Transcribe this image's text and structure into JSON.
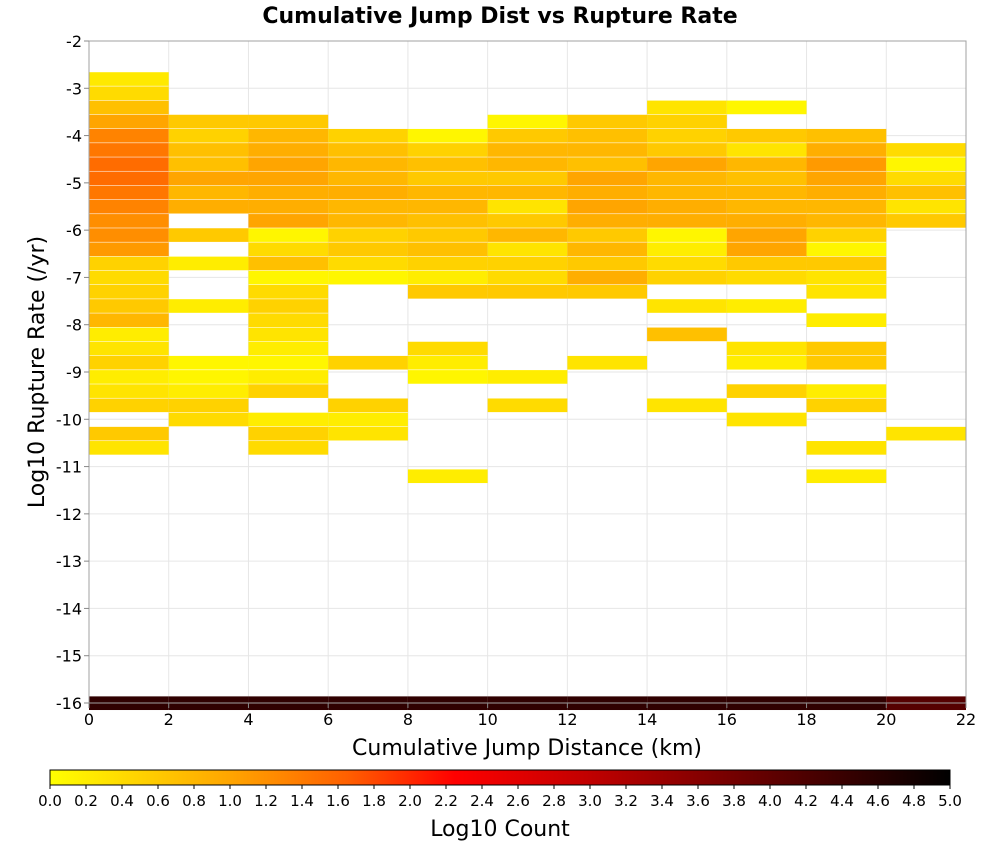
{
  "chart_data": {
    "type": "heatmap",
    "title": "Cumulative Jump Dist vs Rupture Rate",
    "xlabel": "Cumulative Jump Distance (km)",
    "ylabel": "Log10 Rupture Rate (/yr)",
    "xlim": [
      0,
      22
    ],
    "ylim": [
      -16,
      -2
    ],
    "xticks": [
      0,
      2,
      4,
      6,
      8,
      10,
      12,
      14,
      16,
      18,
      20,
      22
    ],
    "yticks": [
      -2,
      -3,
      -4,
      -5,
      -6,
      -7,
      -8,
      -9,
      -10,
      -11,
      -12,
      -13,
      -14,
      -15,
      -16
    ],
    "grid": true,
    "bin_width_x": 2,
    "bin_height_y": 0.28,
    "colorbar": {
      "label": "Log10 Count",
      "range": [
        0,
        5
      ],
      "ticks": [
        "0.0",
        "0.2",
        "0.4",
        "0.6",
        "0.8",
        "1.0",
        "1.2",
        "1.4",
        "1.6",
        "1.8",
        "2.0",
        "2.2",
        "2.4",
        "2.6",
        "2.8",
        "3.0",
        "3.2",
        "3.4",
        "3.6",
        "3.8",
        "4.0",
        "4.2",
        "4.4",
        "4.6",
        "4.8",
        "5.0"
      ],
      "colors": [
        "#ffff00",
        "#ffa500",
        "#ff6000",
        "#ff0000",
        "#c00000",
        "#800000",
        "#000000"
      ],
      "position": "bottom"
    },
    "cells": [
      {
        "x": 1,
        "y": -2.8,
        "v": 0.25
      },
      {
        "x": 1,
        "y": -3.1,
        "v": 0.4
      },
      {
        "x": 1,
        "y": -3.4,
        "v": 0.7
      },
      {
        "x": 1,
        "y": -3.7,
        "v": 1.0
      },
      {
        "x": 1,
        "y": -4.0,
        "v": 1.3
      },
      {
        "x": 1,
        "y": -4.3,
        "v": 1.4
      },
      {
        "x": 1,
        "y": -4.6,
        "v": 1.5
      },
      {
        "x": 1,
        "y": -4.9,
        "v": 1.5
      },
      {
        "x": 1,
        "y": -5.2,
        "v": 1.4
      },
      {
        "x": 1,
        "y": -5.5,
        "v": 1.3
      },
      {
        "x": 1,
        "y": -5.8,
        "v": 1.2
      },
      {
        "x": 1,
        "y": -6.1,
        "v": 1.2
      },
      {
        "x": 1,
        "y": -6.4,
        "v": 1.1
      },
      {
        "x": 1,
        "y": -6.7,
        "v": 0.5
      },
      {
        "x": 1,
        "y": -7.0,
        "v": 0.4
      },
      {
        "x": 1,
        "y": -7.3,
        "v": 0.5
      },
      {
        "x": 1,
        "y": -7.6,
        "v": 0.6
      },
      {
        "x": 1,
        "y": -7.9,
        "v": 0.8
      },
      {
        "x": 1,
        "y": -8.2,
        "v": 0.2
      },
      {
        "x": 1,
        "y": -8.5,
        "v": 0.3
      },
      {
        "x": 1,
        "y": -8.8,
        "v": 0.5
      },
      {
        "x": 1,
        "y": -9.1,
        "v": 0.2
      },
      {
        "x": 1,
        "y": -9.4,
        "v": 0.3
      },
      {
        "x": 1,
        "y": -9.7,
        "v": 0.5
      },
      {
        "x": 1,
        "y": -10.3,
        "v": 0.6
      },
      {
        "x": 1,
        "y": -10.6,
        "v": 0.3
      },
      {
        "x": 3,
        "y": -3.7,
        "v": 0.6
      },
      {
        "x": 3,
        "y": -4.0,
        "v": 0.5
      },
      {
        "x": 3,
        "y": -4.3,
        "v": 0.7
      },
      {
        "x": 3,
        "y": -4.6,
        "v": 0.7
      },
      {
        "x": 3,
        "y": -4.9,
        "v": 1.0
      },
      {
        "x": 3,
        "y": -5.2,
        "v": 0.8
      },
      {
        "x": 3,
        "y": -5.5,
        "v": 0.9
      },
      {
        "x": 3,
        "y": -6.1,
        "v": 0.6
      },
      {
        "x": 3,
        "y": -6.7,
        "v": 0.2
      },
      {
        "x": 3,
        "y": -7.6,
        "v": 0.2
      },
      {
        "x": 3,
        "y": -8.8,
        "v": 0.1
      },
      {
        "x": 3,
        "y": -9.1,
        "v": 0.1
      },
      {
        "x": 3,
        "y": -9.4,
        "v": 0.2
      },
      {
        "x": 3,
        "y": -9.7,
        "v": 0.5
      },
      {
        "x": 3,
        "y": -10.0,
        "v": 0.4
      },
      {
        "x": 5,
        "y": -3.7,
        "v": 0.6
      },
      {
        "x": 5,
        "y": -4.0,
        "v": 0.8
      },
      {
        "x": 5,
        "y": -4.3,
        "v": 0.9
      },
      {
        "x": 5,
        "y": -4.6,
        "v": 1.0
      },
      {
        "x": 5,
        "y": -4.9,
        "v": 1.0
      },
      {
        "x": 5,
        "y": -5.2,
        "v": 0.9
      },
      {
        "x": 5,
        "y": -5.5,
        "v": 0.9
      },
      {
        "x": 5,
        "y": -5.8,
        "v": 1.0
      },
      {
        "x": 5,
        "y": -6.1,
        "v": 0.1
      },
      {
        "x": 5,
        "y": -6.4,
        "v": 0.4
      },
      {
        "x": 5,
        "y": -6.7,
        "v": 0.7
      },
      {
        "x": 5,
        "y": -7.0,
        "v": 0.1
      },
      {
        "x": 5,
        "y": -7.3,
        "v": 0.4
      },
      {
        "x": 5,
        "y": -7.6,
        "v": 0.5
      },
      {
        "x": 5,
        "y": -7.9,
        "v": 0.4
      },
      {
        "x": 5,
        "y": -8.2,
        "v": 0.3
      },
      {
        "x": 5,
        "y": -8.5,
        "v": 0.2
      },
      {
        "x": 5,
        "y": -8.8,
        "v": 0.1
      },
      {
        "x": 5,
        "y": -9.1,
        "v": 0.2
      },
      {
        "x": 5,
        "y": -9.4,
        "v": 0.5
      },
      {
        "x": 5,
        "y": -10.0,
        "v": 0.2
      },
      {
        "x": 5,
        "y": -10.3,
        "v": 0.5
      },
      {
        "x": 5,
        "y": -10.6,
        "v": 0.4
      },
      {
        "x": 7,
        "y": -4.0,
        "v": 0.5
      },
      {
        "x": 7,
        "y": -4.3,
        "v": 0.7
      },
      {
        "x": 7,
        "y": -4.6,
        "v": 0.8
      },
      {
        "x": 7,
        "y": -4.9,
        "v": 0.8
      },
      {
        "x": 7,
        "y": -5.2,
        "v": 0.9
      },
      {
        "x": 7,
        "y": -5.5,
        "v": 0.8
      },
      {
        "x": 7,
        "y": -5.8,
        "v": 0.8
      },
      {
        "x": 7,
        "y": -6.1,
        "v": 0.5
      },
      {
        "x": 7,
        "y": -6.4,
        "v": 0.6
      },
      {
        "x": 7,
        "y": -6.7,
        "v": 0.4
      },
      {
        "x": 7,
        "y": -7.0,
        "v": 0.1
      },
      {
        "x": 7,
        "y": -8.8,
        "v": 0.5
      },
      {
        "x": 7,
        "y": -9.7,
        "v": 0.5
      },
      {
        "x": 7,
        "y": -10.0,
        "v": 0.2
      },
      {
        "x": 7,
        "y": -10.3,
        "v": 0.3
      },
      {
        "x": 9,
        "y": -4.0,
        "v": 0.1
      },
      {
        "x": 9,
        "y": -4.3,
        "v": 0.5
      },
      {
        "x": 9,
        "y": -4.6,
        "v": 0.7
      },
      {
        "x": 9,
        "y": -4.9,
        "v": 0.6
      },
      {
        "x": 9,
        "y": -5.2,
        "v": 0.8
      },
      {
        "x": 9,
        "y": -5.5,
        "v": 0.8
      },
      {
        "x": 9,
        "y": -5.8,
        "v": 0.7
      },
      {
        "x": 9,
        "y": -6.1,
        "v": 0.6
      },
      {
        "x": 9,
        "y": -6.4,
        "v": 0.7
      },
      {
        "x": 9,
        "y": -6.7,
        "v": 0.5
      },
      {
        "x": 9,
        "y": -7.0,
        "v": 0.2
      },
      {
        "x": 9,
        "y": -7.3,
        "v": 0.6
      },
      {
        "x": 9,
        "y": -8.5,
        "v": 0.4
      },
      {
        "x": 9,
        "y": -8.8,
        "v": 0.2
      },
      {
        "x": 9,
        "y": -9.1,
        "v": 0.1
      },
      {
        "x": 9,
        "y": -11.2,
        "v": 0.2
      },
      {
        "x": 11,
        "y": -3.7,
        "v": 0.1
      },
      {
        "x": 11,
        "y": -4.0,
        "v": 0.6
      },
      {
        "x": 11,
        "y": -4.3,
        "v": 0.8
      },
      {
        "x": 11,
        "y": -4.6,
        "v": 0.8
      },
      {
        "x": 11,
        "y": -4.9,
        "v": 0.6
      },
      {
        "x": 11,
        "y": -5.2,
        "v": 0.8
      },
      {
        "x": 11,
        "y": -5.5,
        "v": 0.3
      },
      {
        "x": 11,
        "y": -5.8,
        "v": 0.6
      },
      {
        "x": 11,
        "y": -6.1,
        "v": 0.8
      },
      {
        "x": 11,
        "y": -6.4,
        "v": 0.3
      },
      {
        "x": 11,
        "y": -6.7,
        "v": 0.5
      },
      {
        "x": 11,
        "y": -7.0,
        "v": 0.4
      },
      {
        "x": 11,
        "y": -7.3,
        "v": 0.6
      },
      {
        "x": 11,
        "y": -9.1,
        "v": 0.2
      },
      {
        "x": 11,
        "y": -9.7,
        "v": 0.4
      },
      {
        "x": 13,
        "y": -3.7,
        "v": 0.6
      },
      {
        "x": 13,
        "y": -4.0,
        "v": 0.7
      },
      {
        "x": 13,
        "y": -4.3,
        "v": 0.8
      },
      {
        "x": 13,
        "y": -4.6,
        "v": 0.7
      },
      {
        "x": 13,
        "y": -4.9,
        "v": 1.0
      },
      {
        "x": 13,
        "y": -5.2,
        "v": 0.9
      },
      {
        "x": 13,
        "y": -5.5,
        "v": 1.0
      },
      {
        "x": 13,
        "y": -5.8,
        "v": 0.9
      },
      {
        "x": 13,
        "y": -6.1,
        "v": 0.6
      },
      {
        "x": 13,
        "y": -6.4,
        "v": 0.8
      },
      {
        "x": 13,
        "y": -6.7,
        "v": 0.6
      },
      {
        "x": 13,
        "y": -7.0,
        "v": 0.9
      },
      {
        "x": 13,
        "y": -7.3,
        "v": 0.6
      },
      {
        "x": 13,
        "y": -8.8,
        "v": 0.3
      },
      {
        "x": 15,
        "y": -3.4,
        "v": 0.3
      },
      {
        "x": 15,
        "y": -3.7,
        "v": 0.5
      },
      {
        "x": 15,
        "y": -4.0,
        "v": 0.5
      },
      {
        "x": 15,
        "y": -4.3,
        "v": 0.6
      },
      {
        "x": 15,
        "y": -4.6,
        "v": 1.0
      },
      {
        "x": 15,
        "y": -4.9,
        "v": 0.8
      },
      {
        "x": 15,
        "y": -5.2,
        "v": 0.8
      },
      {
        "x": 15,
        "y": -5.5,
        "v": 0.9
      },
      {
        "x": 15,
        "y": -5.8,
        "v": 0.9
      },
      {
        "x": 15,
        "y": -6.1,
        "v": 0.1
      },
      {
        "x": 15,
        "y": -6.4,
        "v": 0.2
      },
      {
        "x": 15,
        "y": -6.7,
        "v": 0.4
      },
      {
        "x": 15,
        "y": -7.0,
        "v": 0.5
      },
      {
        "x": 15,
        "y": -7.6,
        "v": 0.3
      },
      {
        "x": 15,
        "y": -8.2,
        "v": 0.7
      },
      {
        "x": 15,
        "y": -9.7,
        "v": 0.3
      },
      {
        "x": 17,
        "y": -3.4,
        "v": 0.1
      },
      {
        "x": 17,
        "y": -4.0,
        "v": 0.6
      },
      {
        "x": 17,
        "y": -4.3,
        "v": 0.3
      },
      {
        "x": 17,
        "y": -4.6,
        "v": 0.8
      },
      {
        "x": 17,
        "y": -4.9,
        "v": 0.7
      },
      {
        "x": 17,
        "y": -5.2,
        "v": 0.8
      },
      {
        "x": 17,
        "y": -5.5,
        "v": 0.8
      },
      {
        "x": 17,
        "y": -5.8,
        "v": 0.9
      },
      {
        "x": 17,
        "y": -6.1,
        "v": 1.0
      },
      {
        "x": 17,
        "y": -6.4,
        "v": 1.0
      },
      {
        "x": 17,
        "y": -6.7,
        "v": 0.6
      },
      {
        "x": 17,
        "y": -7.0,
        "v": 0.4
      },
      {
        "x": 17,
        "y": -7.6,
        "v": 0.2
      },
      {
        "x": 17,
        "y": -8.5,
        "v": 0.3
      },
      {
        "x": 17,
        "y": -8.8,
        "v": 0.2
      },
      {
        "x": 17,
        "y": -9.4,
        "v": 0.5
      },
      {
        "x": 17,
        "y": -10.0,
        "v": 0.3
      },
      {
        "x": 19,
        "y": -4.0,
        "v": 0.7
      },
      {
        "x": 19,
        "y": -4.3,
        "v": 0.9
      },
      {
        "x": 19,
        "y": -4.6,
        "v": 1.1
      },
      {
        "x": 19,
        "y": -4.9,
        "v": 1.0
      },
      {
        "x": 19,
        "y": -5.2,
        "v": 0.9
      },
      {
        "x": 19,
        "y": -5.5,
        "v": 0.8
      },
      {
        "x": 19,
        "y": -5.8,
        "v": 0.8
      },
      {
        "x": 19,
        "y": -6.1,
        "v": 0.5
      },
      {
        "x": 19,
        "y": -6.4,
        "v": 0.1
      },
      {
        "x": 19,
        "y": -6.7,
        "v": 0.6
      },
      {
        "x": 19,
        "y": -7.0,
        "v": 0.3
      },
      {
        "x": 19,
        "y": -7.3,
        "v": 0.3
      },
      {
        "x": 19,
        "y": -7.9,
        "v": 0.2
      },
      {
        "x": 19,
        "y": -8.5,
        "v": 0.6
      },
      {
        "x": 19,
        "y": -8.8,
        "v": 0.6
      },
      {
        "x": 19,
        "y": -9.4,
        "v": 0.2
      },
      {
        "x": 19,
        "y": -9.7,
        "v": 0.5
      },
      {
        "x": 19,
        "y": -10.6,
        "v": 0.3
      },
      {
        "x": 19,
        "y": -11.2,
        "v": 0.2
      },
      {
        "x": 21,
        "y": -4.3,
        "v": 0.4
      },
      {
        "x": 21,
        "y": -4.6,
        "v": 0.1
      },
      {
        "x": 21,
        "y": -4.9,
        "v": 0.4
      },
      {
        "x": 21,
        "y": -5.2,
        "v": 0.7
      },
      {
        "x": 21,
        "y": -5.5,
        "v": 0.3
      },
      {
        "x": 21,
        "y": -5.8,
        "v": 0.6
      },
      {
        "x": 21,
        "y": -10.3,
        "v": 0.3
      },
      {
        "x": 1,
        "y": -16,
        "v": 4.5
      },
      {
        "x": 3,
        "y": -16,
        "v": 4.5
      },
      {
        "x": 5,
        "y": -16,
        "v": 4.5
      },
      {
        "x": 7,
        "y": -16,
        "v": 4.5
      },
      {
        "x": 9,
        "y": -16,
        "v": 4.5
      },
      {
        "x": 11,
        "y": -16,
        "v": 4.5
      },
      {
        "x": 13,
        "y": -16,
        "v": 4.5
      },
      {
        "x": 15,
        "y": -16,
        "v": 4.5
      },
      {
        "x": 17,
        "y": -16,
        "v": 4.5
      },
      {
        "x": 19,
        "y": -16,
        "v": 4.5
      },
      {
        "x": 21,
        "y": -16,
        "v": 4.1
      }
    ]
  }
}
